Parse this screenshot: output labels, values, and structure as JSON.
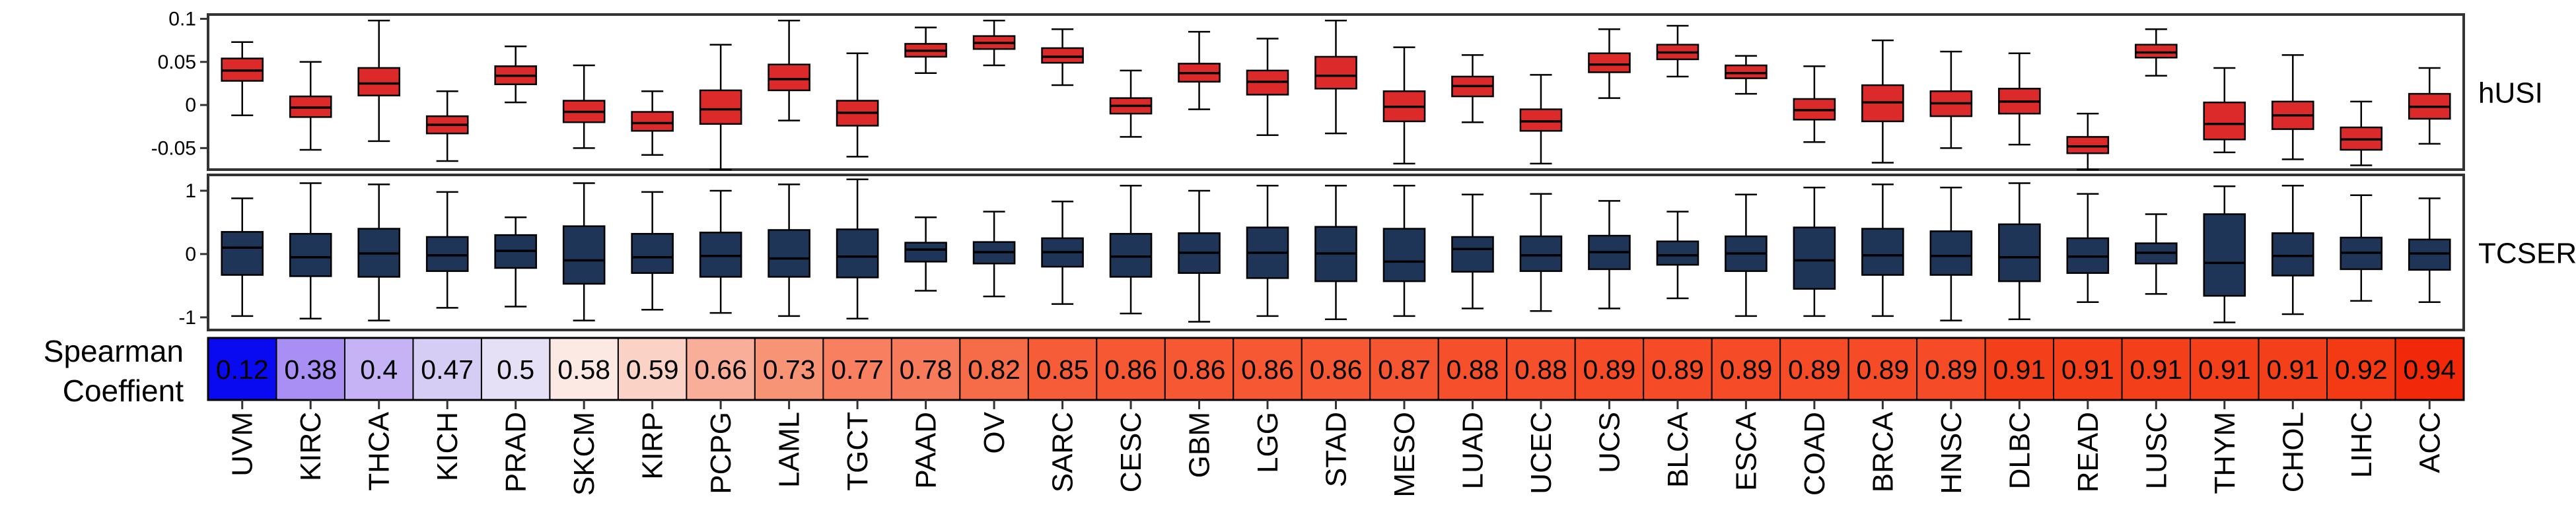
{
  "chart_data": {
    "type": "boxplot",
    "categories": [
      "UVM",
      "KIRC",
      "THCA",
      "KICH",
      "PRAD",
      "SKCM",
      "KIRP",
      "PCPG",
      "LAML",
      "TGCT",
      "PAAD",
      "OV",
      "SARC",
      "CESC",
      "GBM",
      "LGG",
      "STAD",
      "MESO",
      "LUAD",
      "UCEC",
      "UCS",
      "BLCA",
      "ESCA",
      "COAD",
      "BRCA",
      "HNSC",
      "DLBC",
      "READ",
      "LUSC",
      "THYM",
      "CHOL",
      "LIHC",
      "ACC"
    ],
    "panels": [
      {
        "label": "hUSI",
        "color": "#dc2a2a",
        "ylim": [
          -0.075,
          0.105
        ],
        "ticks": [
          -0.05,
          0,
          0.05,
          0.1
        ],
        "tick_labels": [
          "-0.05",
          "0",
          "0.05",
          "0.1"
        ],
        "boxes": [
          {
            "min": -0.012,
            "q1": 0.028,
            "median": 0.04,
            "q3": 0.054,
            "max": 0.073
          },
          {
            "min": -0.052,
            "q1": -0.014,
            "median": -0.003,
            "q3": 0.01,
            "max": 0.05
          },
          {
            "min": -0.042,
            "q1": 0.011,
            "median": 0.025,
            "q3": 0.043,
            "max": 0.098
          },
          {
            "min": -0.065,
            "q1": -0.033,
            "median": -0.023,
            "q3": -0.013,
            "max": 0.016
          },
          {
            "min": 0.003,
            "q1": 0.024,
            "median": 0.034,
            "q3": 0.045,
            "max": 0.068
          },
          {
            "min": -0.05,
            "q1": -0.02,
            "median": -0.008,
            "q3": 0.005,
            "max": 0.046
          },
          {
            "min": -0.058,
            "q1": -0.03,
            "median": -0.021,
            "q3": -0.008,
            "max": 0.016
          },
          {
            "min": -0.075,
            "q1": -0.022,
            "median": -0.005,
            "q3": 0.017,
            "max": 0.07
          },
          {
            "min": -0.018,
            "q1": 0.017,
            "median": 0.03,
            "q3": 0.047,
            "max": 0.098
          },
          {
            "min": -0.06,
            "q1": -0.024,
            "median": -0.009,
            "q3": 0.005,
            "max": 0.06
          },
          {
            "min": 0.037,
            "q1": 0.056,
            "median": 0.063,
            "q3": 0.071,
            "max": 0.09
          },
          {
            "min": 0.046,
            "q1": 0.065,
            "median": 0.072,
            "q3": 0.08,
            "max": 0.098
          },
          {
            "min": 0.023,
            "q1": 0.049,
            "median": 0.056,
            "q3": 0.066,
            "max": 0.088
          },
          {
            "min": -0.037,
            "q1": -0.01,
            "median": -0.001,
            "q3": 0.008,
            "max": 0.04
          },
          {
            "min": -0.005,
            "q1": 0.027,
            "median": 0.037,
            "q3": 0.048,
            "max": 0.085
          },
          {
            "min": -0.035,
            "q1": 0.012,
            "median": 0.027,
            "q3": 0.04,
            "max": 0.077
          },
          {
            "min": -0.033,
            "q1": 0.019,
            "median": 0.034,
            "q3": 0.056,
            "max": 0.098
          },
          {
            "min": -0.068,
            "q1": -0.019,
            "median": -0.002,
            "q3": 0.016,
            "max": 0.067
          },
          {
            "min": -0.02,
            "q1": 0.01,
            "median": 0.022,
            "q3": 0.033,
            "max": 0.058
          },
          {
            "min": -0.068,
            "q1": -0.03,
            "median": -0.019,
            "q3": -0.005,
            "max": 0.035
          },
          {
            "min": 0.008,
            "q1": 0.038,
            "median": 0.047,
            "q3": 0.06,
            "max": 0.088
          },
          {
            "min": 0.033,
            "q1": 0.053,
            "median": 0.061,
            "q3": 0.07,
            "max": 0.092
          },
          {
            "min": 0.013,
            "q1": 0.031,
            "median": 0.037,
            "q3": 0.046,
            "max": 0.057
          },
          {
            "min": -0.043,
            "q1": -0.017,
            "median": -0.006,
            "q3": 0.007,
            "max": 0.045
          },
          {
            "min": -0.067,
            "q1": -0.019,
            "median": 0.003,
            "q3": 0.023,
            "max": 0.075
          },
          {
            "min": -0.05,
            "q1": -0.013,
            "median": 0.002,
            "q3": 0.016,
            "max": 0.062
          },
          {
            "min": -0.046,
            "q1": -0.01,
            "median": 0.004,
            "q3": 0.019,
            "max": 0.06
          },
          {
            "min": -0.075,
            "q1": -0.056,
            "median": -0.048,
            "q3": -0.037,
            "max": -0.01
          },
          {
            "min": 0.034,
            "q1": 0.055,
            "median": 0.061,
            "q3": 0.07,
            "max": 0.088
          },
          {
            "min": -0.055,
            "q1": -0.04,
            "median": -0.022,
            "q3": 0.003,
            "max": 0.043
          },
          {
            "min": -0.063,
            "q1": -0.028,
            "median": -0.012,
            "q3": 0.004,
            "max": 0.058
          },
          {
            "min": -0.07,
            "q1": -0.052,
            "median": -0.04,
            "q3": -0.026,
            "max": 0.004
          },
          {
            "min": -0.045,
            "q1": -0.016,
            "median": -0.002,
            "q3": 0.013,
            "max": 0.043
          }
        ]
      },
      {
        "label": "TCSER",
        "color": "#1e3558",
        "ylim": [
          -1.2,
          1.25
        ],
        "ticks": [
          -1,
          0,
          1
        ],
        "tick_labels": [
          "-1",
          "0",
          "1"
        ],
        "boxes": [
          {
            "min": -0.98,
            "q1": -0.33,
            "median": 0.1,
            "q3": 0.35,
            "max": 0.88
          },
          {
            "min": -1.02,
            "q1": -0.35,
            "median": -0.05,
            "q3": 0.32,
            "max": 1.12
          },
          {
            "min": -1.05,
            "q1": -0.36,
            "median": 0.01,
            "q3": 0.4,
            "max": 1.1
          },
          {
            "min": -0.85,
            "q1": -0.27,
            "median": -0.02,
            "q3": 0.27,
            "max": 0.98
          },
          {
            "min": -0.83,
            "q1": -0.22,
            "median": 0.05,
            "q3": 0.3,
            "max": 0.58
          },
          {
            "min": -1.05,
            "q1": -0.47,
            "median": -0.1,
            "q3": 0.44,
            "max": 1.12
          },
          {
            "min": -0.88,
            "q1": -0.3,
            "median": -0.05,
            "q3": 0.32,
            "max": 0.98
          },
          {
            "min": -0.93,
            "q1": -0.36,
            "median": -0.03,
            "q3": 0.34,
            "max": 1.0
          },
          {
            "min": -0.98,
            "q1": -0.36,
            "median": -0.07,
            "q3": 0.38,
            "max": 1.1
          },
          {
            "min": -1.02,
            "q1": -0.37,
            "median": -0.04,
            "q3": 0.39,
            "max": 1.18
          },
          {
            "min": -0.58,
            "q1": -0.12,
            "median": 0.07,
            "q3": 0.18,
            "max": 0.58
          },
          {
            "min": -0.67,
            "q1": -0.15,
            "median": 0.03,
            "q3": 0.19,
            "max": 0.67
          },
          {
            "min": -0.79,
            "q1": -0.2,
            "median": 0.03,
            "q3": 0.25,
            "max": 0.83
          },
          {
            "min": -0.94,
            "q1": -0.36,
            "median": -0.04,
            "q3": 0.32,
            "max": 1.08
          },
          {
            "min": -1.07,
            "q1": -0.3,
            "median": 0.02,
            "q3": 0.33,
            "max": 1.0
          },
          {
            "min": -0.98,
            "q1": -0.38,
            "median": 0.02,
            "q3": 0.42,
            "max": 1.08
          },
          {
            "min": -1.03,
            "q1": -0.43,
            "median": 0.01,
            "q3": 0.43,
            "max": 1.08
          },
          {
            "min": -0.98,
            "q1": -0.43,
            "median": -0.12,
            "q3": 0.4,
            "max": 1.08
          },
          {
            "min": -0.86,
            "q1": -0.28,
            "median": 0.08,
            "q3": 0.27,
            "max": 0.94
          },
          {
            "min": -0.9,
            "q1": -0.27,
            "median": -0.02,
            "q3": 0.28,
            "max": 0.95
          },
          {
            "min": -0.86,
            "q1": -0.24,
            "median": 0.03,
            "q3": 0.29,
            "max": 0.84
          },
          {
            "min": -0.7,
            "q1": -0.17,
            "median": -0.02,
            "q3": 0.2,
            "max": 0.67
          },
          {
            "min": -0.98,
            "q1": -0.27,
            "median": 0.01,
            "q3": 0.28,
            "max": 0.94
          },
          {
            "min": -0.98,
            "q1": -0.55,
            "median": -0.1,
            "q3": 0.42,
            "max": 1.05
          },
          {
            "min": -0.98,
            "q1": -0.33,
            "median": -0.02,
            "q3": 0.4,
            "max": 1.1
          },
          {
            "min": -1.05,
            "q1": -0.33,
            "median": -0.03,
            "q3": 0.36,
            "max": 1.05
          },
          {
            "min": -1.03,
            "q1": -0.43,
            "median": -0.05,
            "q3": 0.47,
            "max": 1.12
          },
          {
            "min": -0.76,
            "q1": -0.3,
            "median": -0.04,
            "q3": 0.25,
            "max": 0.95
          },
          {
            "min": -0.63,
            "q1": -0.15,
            "median": 0.02,
            "q3": 0.17,
            "max": 0.63
          },
          {
            "min": -1.08,
            "q1": -0.66,
            "median": -0.14,
            "q3": 0.63,
            "max": 1.07
          },
          {
            "min": -0.95,
            "q1": -0.34,
            "median": -0.03,
            "q3": 0.33,
            "max": 1.08
          },
          {
            "min": -0.74,
            "q1": -0.24,
            "median": 0.02,
            "q3": 0.26,
            "max": 0.93
          },
          {
            "min": -0.76,
            "q1": -0.25,
            "median": 0.01,
            "q3": 0.23,
            "max": 0.88
          }
        ]
      }
    ],
    "heatmap": {
      "label_line1": "Spearman",
      "label_line2": "Coeffient",
      "values": [
        0.12,
        0.38,
        0.4,
        0.47,
        0.5,
        0.58,
        0.59,
        0.66,
        0.73,
        0.77,
        0.78,
        0.82,
        0.85,
        0.86,
        0.86,
        0.86,
        0.86,
        0.87,
        0.88,
        0.88,
        0.89,
        0.89,
        0.89,
        0.89,
        0.89,
        0.89,
        0.91,
        0.91,
        0.91,
        0.91,
        0.91,
        0.92,
        0.94
      ],
      "value_labels": [
        "0.12",
        "0.38",
        "0.4",
        "0.47",
        "0.5",
        "0.58",
        "0.59",
        "0.66",
        "0.73",
        "0.77",
        "0.78",
        "0.82",
        "0.85",
        "0.86",
        "0.86",
        "0.86",
        "0.86",
        "0.87",
        "0.88",
        "0.88",
        "0.89",
        "0.89",
        "0.89",
        "0.89",
        "0.89",
        "0.89",
        "0.91",
        "0.91",
        "0.91",
        "0.91",
        "0.91",
        "0.92",
        "0.94"
      ],
      "colors": [
        "#0a0af0",
        "#a98ef3",
        "#c6b3f5",
        "#d6cdf5",
        "#e6e0f6",
        "#fde9e4",
        "#fbd3c6",
        "#f9ae9a",
        "#f89476",
        "#f87f5f",
        "#f77b5a",
        "#f66b48",
        "#f65c38",
        "#f65834",
        "#f65834",
        "#f65834",
        "#f65834",
        "#f55531",
        "#f5502b",
        "#f5502b",
        "#f54c27",
        "#f54c27",
        "#f54c27",
        "#f54c27",
        "#f54c27",
        "#f54c27",
        "#f4401a",
        "#f4401a",
        "#f4401a",
        "#f4401a",
        "#f4401a",
        "#f43a14",
        "#f2280a"
      ]
    }
  }
}
